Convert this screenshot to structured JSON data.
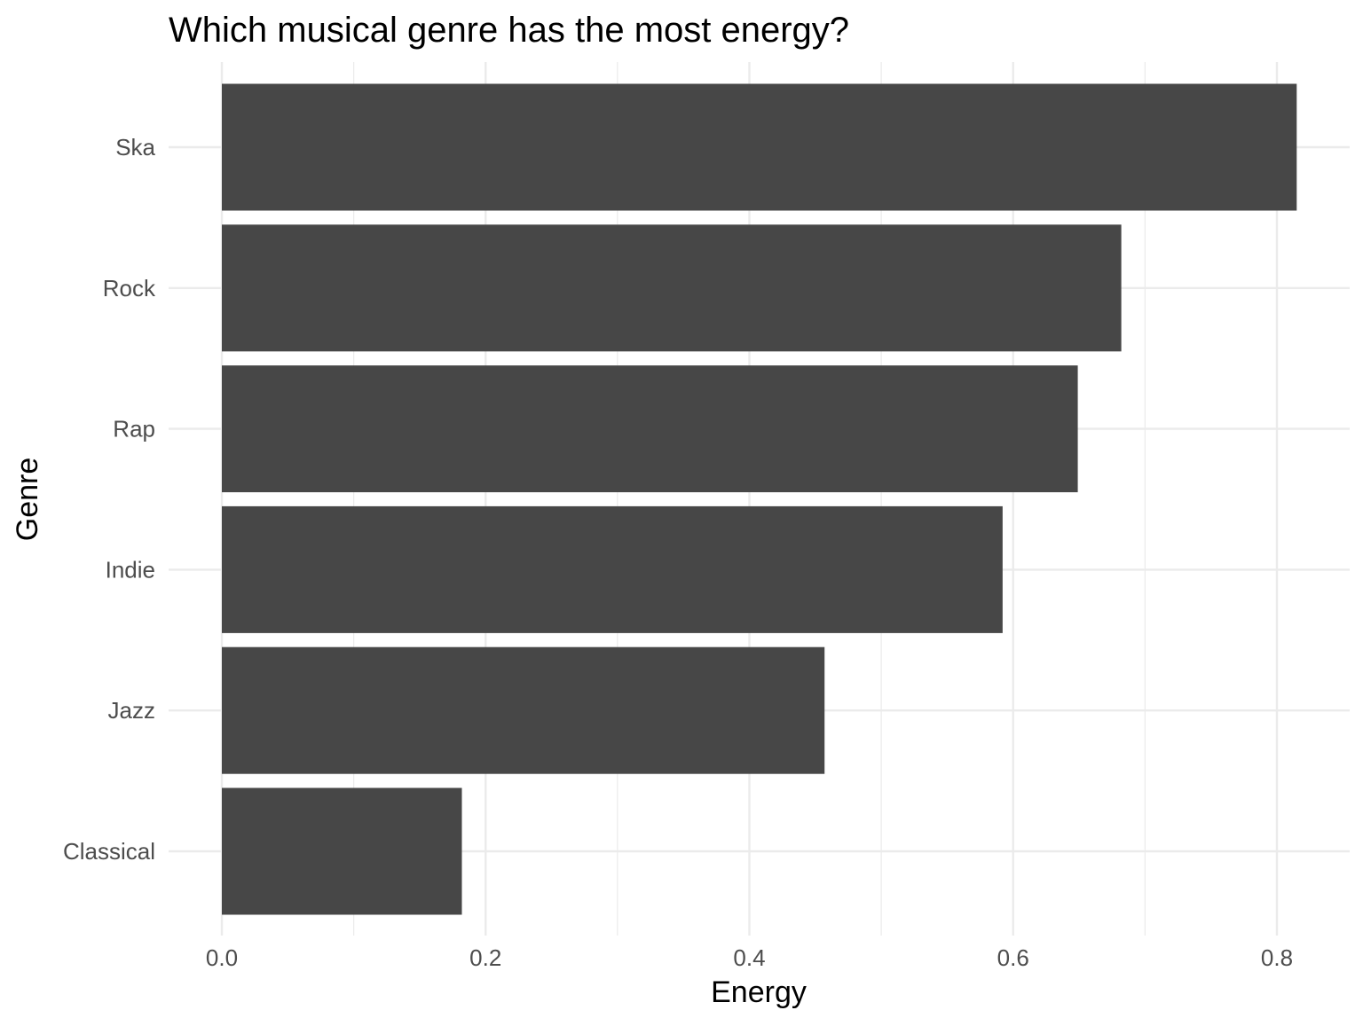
{
  "chart_data": {
    "type": "bar",
    "orientation": "horizontal",
    "title": "Which musical genre has the most energy?",
    "xlabel": "Energy",
    "ylabel": "Genre",
    "categories": [
      "Ska",
      "Rock",
      "Rap",
      "Indie",
      "Jazz",
      "Classical"
    ],
    "values": [
      0.815,
      0.682,
      0.649,
      0.592,
      0.457,
      0.182
    ],
    "xlim": [
      0,
      0.85
    ],
    "x_ticks": [
      0.0,
      0.2,
      0.4,
      0.6,
      0.8
    ],
    "x_tick_labels": [
      "0.0",
      "0.2",
      "0.4",
      "0.6",
      "0.8"
    ],
    "grid": true,
    "bar_color": "#474747",
    "grid_color": "#ebebeb"
  }
}
